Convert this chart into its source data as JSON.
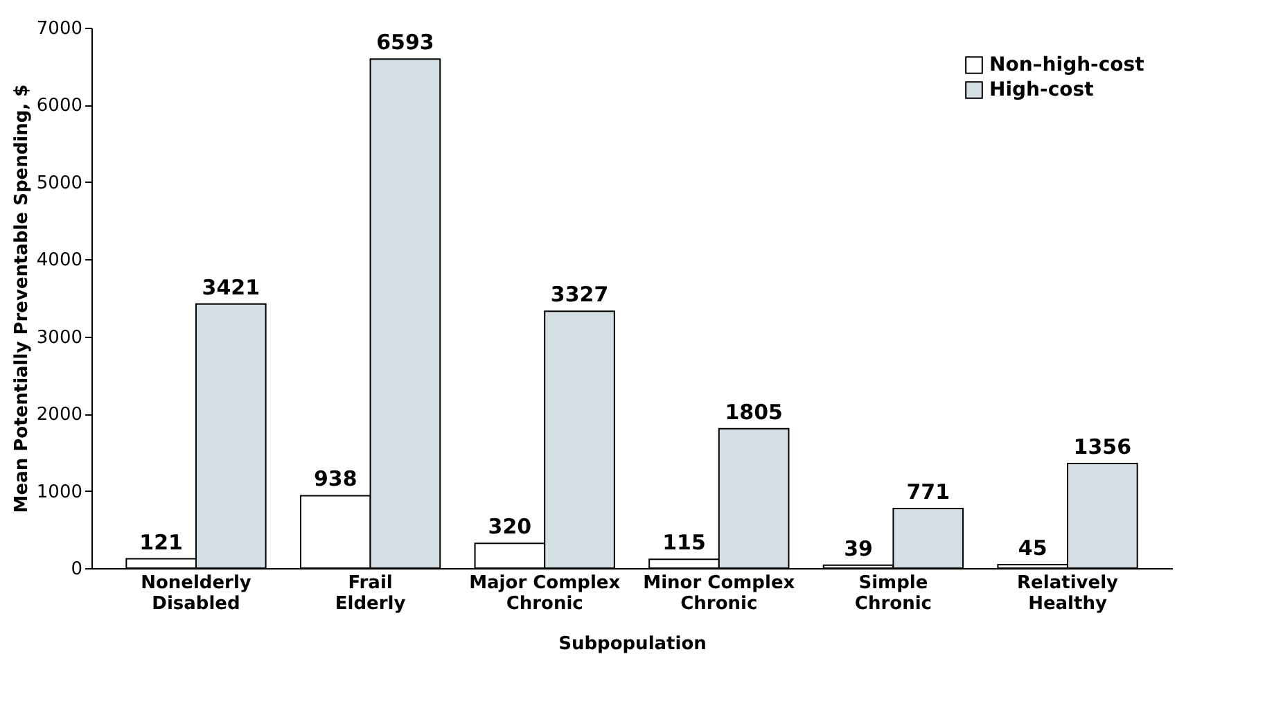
{
  "chart_data": {
    "type": "bar",
    "xlabel": "Subpopulation",
    "ylabel": "Mean Potentially Preventable Spending, $",
    "categories": [
      "Nonelderly Disabled",
      "Frail Elderly",
      "Major Complex Chronic",
      "Minor Complex Chronic",
      "Simple Chronic",
      "Relatively Healthy"
    ],
    "series": [
      {
        "name": "Non–high-cost",
        "color": "#ffffff",
        "values": [
          121,
          938,
          320,
          115,
          39,
          45
        ]
      },
      {
        "name": "High-cost",
        "color": "#d3dfe5",
        "values": [
          3421,
          6593,
          3327,
          1805,
          771,
          1356
        ]
      }
    ],
    "ylim": [
      0,
      7000
    ],
    "yticks": [
      0,
      1000,
      2000,
      3000,
      4000,
      5000,
      6000,
      7000
    ],
    "grid": false,
    "legend": "top right",
    "data_labels": true
  }
}
